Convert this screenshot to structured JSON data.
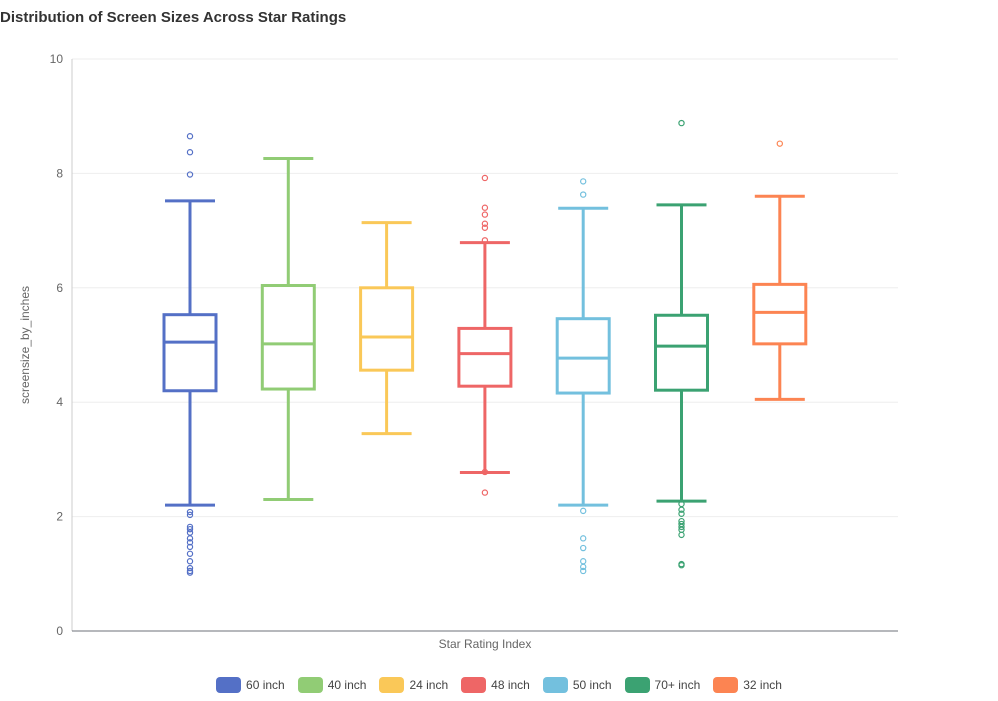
{
  "chart_data": {
    "type": "boxplot",
    "title": "Distribution of Screen Sizes Across Star Ratings",
    "xlabel": "Star Rating Index",
    "ylabel": "screensize_by_inches",
    "ylim": [
      0,
      10
    ],
    "yticks": [
      0,
      2,
      4,
      6,
      8,
      10
    ],
    "grid": true,
    "legend_position": "bottom",
    "series": [
      {
        "name": "60 inch",
        "color": "#5470c6",
        "whisker_low": 2.2,
        "q1": 4.2,
        "median": 5.05,
        "q3": 5.53,
        "whisker_high": 7.52,
        "outliers": [
          8.65,
          8.37,
          7.98,
          2.08,
          2.03,
          1.82,
          1.78,
          1.72,
          1.62,
          1.55,
          1.47,
          1.35,
          1.22,
          1.1,
          1.05,
          1.02
        ]
      },
      {
        "name": "40 inch",
        "color": "#91cc75",
        "whisker_low": 2.3,
        "q1": 4.23,
        "median": 5.02,
        "q3": 6.04,
        "whisker_high": 8.26,
        "outliers": []
      },
      {
        "name": "24 inch",
        "color": "#fac858",
        "whisker_low": 3.45,
        "q1": 4.56,
        "median": 5.14,
        "q3": 6.0,
        "whisker_high": 7.14,
        "outliers": []
      },
      {
        "name": "48 inch",
        "color": "#ee6666",
        "whisker_low": 2.77,
        "q1": 4.28,
        "median": 4.85,
        "q3": 5.29,
        "whisker_high": 6.79,
        "outliers": [
          7.92,
          7.4,
          7.28,
          7.12,
          7.05,
          6.83,
          2.78,
          2.42
        ]
      },
      {
        "name": "50 inch",
        "color": "#73c0de",
        "whisker_low": 2.2,
        "q1": 4.16,
        "median": 4.77,
        "q3": 5.46,
        "whisker_high": 7.39,
        "outliers": [
          7.86,
          7.63,
          2.1,
          1.62,
          1.45,
          1.22,
          1.12,
          1.05
        ]
      },
      {
        "name": "70+ inch",
        "color": "#3ba272",
        "whisker_low": 2.27,
        "q1": 4.21,
        "median": 4.98,
        "q3": 5.52,
        "whisker_high": 7.45,
        "outliers": [
          8.88,
          2.22,
          2.12,
          2.05,
          1.92,
          1.87,
          1.82,
          1.77,
          1.68,
          1.17,
          1.15
        ]
      },
      {
        "name": "32 inch",
        "color": "#fc8452",
        "whisker_low": 4.05,
        "q1": 5.02,
        "median": 5.57,
        "q3": 6.06,
        "whisker_high": 7.6,
        "outliers": [
          8.52
        ]
      }
    ]
  }
}
